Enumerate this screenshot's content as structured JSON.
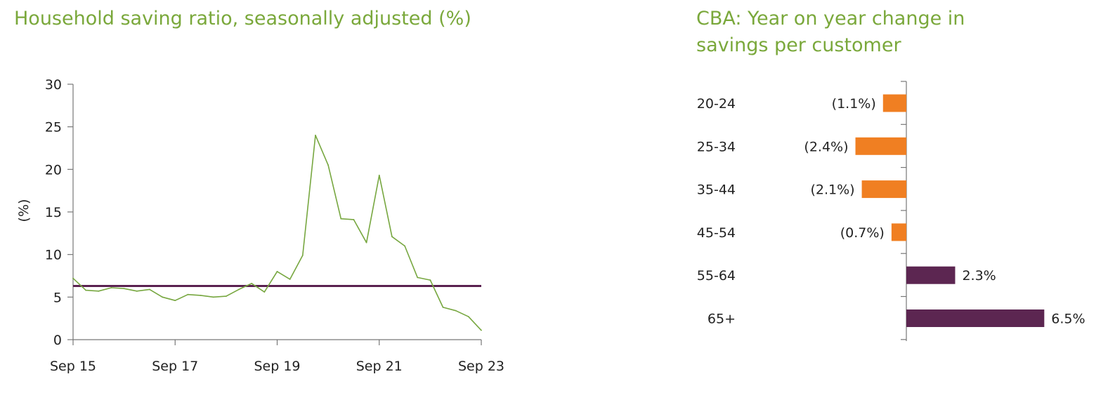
{
  "chart_data": [
    {
      "type": "line",
      "title": "Household saving ratio, seasonally adjusted (%)",
      "ylabel": "(%)",
      "xlabel": "",
      "ylim": [
        0,
        30
      ],
      "yticks": [
        "0",
        "5",
        "10",
        "15",
        "20",
        "25",
        "30"
      ],
      "xticks": [
        "Sep 15",
        "Sep 17",
        "Sep 19",
        "Sep 21",
        "Sep 23"
      ],
      "x": [
        "Sep 15",
        "Dec 15",
        "Mar 16",
        "Jun 16",
        "Sep 16",
        "Dec 16",
        "Mar 17",
        "Jun 17",
        "Sep 17",
        "Dec 17",
        "Mar 18",
        "Jun 18",
        "Sep 18",
        "Dec 18",
        "Mar 19",
        "Jun 19",
        "Sep 19",
        "Dec 19",
        "Mar 20",
        "Jun 20",
        "Sep 20",
        "Dec 20",
        "Mar 21",
        "Jun 21",
        "Sep 21",
        "Dec 21",
        "Mar 22",
        "Jun 22",
        "Sep 22",
        "Dec 22",
        "Mar 23",
        "Jun 23",
        "Sep 23"
      ],
      "series": [
        {
          "values": [
            7.2,
            5.8,
            5.7,
            6.1,
            6.0,
            5.7,
            5.9,
            5.0,
            4.6,
            5.3,
            5.2,
            5.0,
            5.1,
            5.9,
            6.6,
            5.6,
            8.0,
            7.1,
            9.9,
            24.0,
            20.5,
            14.2,
            14.1,
            11.4,
            19.3,
            12.1,
            11.0,
            7.3,
            7.0,
            3.8,
            3.4,
            2.7,
            1.1
          ],
          "color": "#77a740"
        }
      ],
      "reference_line": {
        "value": 6.3,
        "color": "#5a2150"
      }
    },
    {
      "type": "bar",
      "orientation": "horizontal",
      "title": "CBA: Year on year change in savings per customer",
      "categories": [
        "20-24",
        "25-34",
        "35-44",
        "45-54",
        "55-64",
        "65+"
      ],
      "values": [
        -1.1,
        -2.4,
        -2.1,
        -0.7,
        2.3,
        6.5
      ],
      "labels": [
        "(1.1%)",
        "(2.4%)",
        "(2.1%)",
        "(0.7%)",
        "2.3%",
        "6.5%"
      ],
      "negative_color": "#f07f22",
      "positive_color": "#5c2651",
      "xlim": [
        -2.4,
        6.5
      ]
    }
  ]
}
